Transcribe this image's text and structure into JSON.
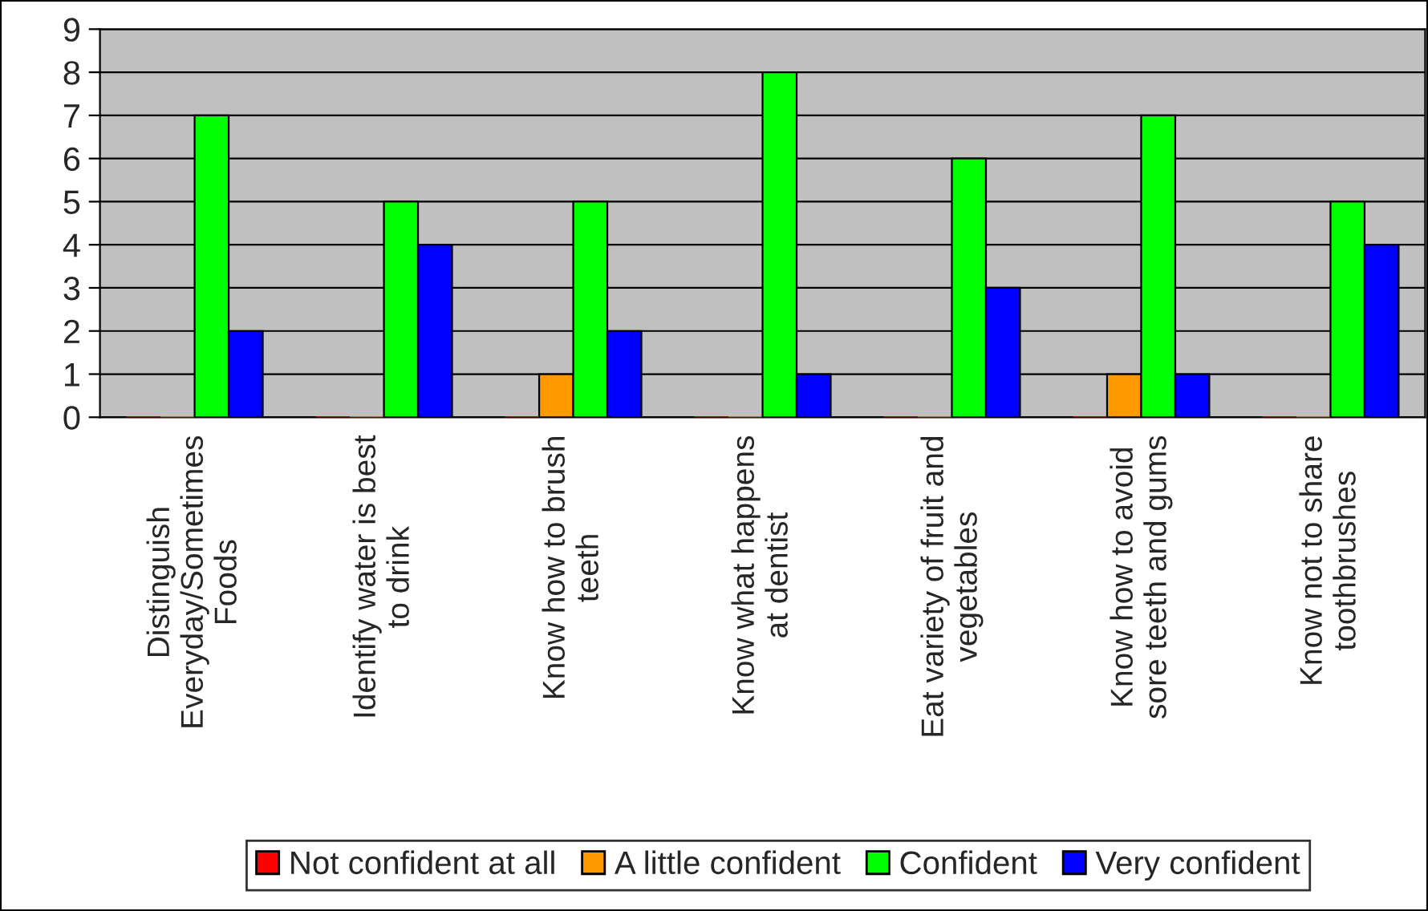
{
  "chart_data": {
    "type": "bar",
    "categories": [
      "Distinguish\nEveryday/Sometimes\nFoods",
      "Identify water is best\nto drink",
      "Know how to brush\nteeth",
      "Know what happens\nat dentist",
      "Eat variety of fruit and\nvegetables",
      "Know how to avoid\nsore teeth and gums",
      "Know not to share\ntoothbrushes"
    ],
    "series": [
      {
        "name": "Not confident at all",
        "color": "#ff0000",
        "values": [
          0,
          0,
          0,
          0,
          0,
          0,
          0
        ]
      },
      {
        "name": "A little confident",
        "color": "#ff9900",
        "values": [
          0,
          0,
          1,
          0,
          0,
          1,
          0
        ]
      },
      {
        "name": "Confident",
        "color": "#00ff00",
        "values": [
          7,
          5,
          5,
          8,
          6,
          7,
          5
        ]
      },
      {
        "name": "Very confident",
        "color": "#0000ff",
        "values": [
          2,
          4,
          2,
          1,
          3,
          1,
          4
        ]
      }
    ],
    "ylim": [
      0,
      9
    ],
    "yticks": [
      0,
      1,
      2,
      3,
      4,
      5,
      6,
      7,
      8,
      9
    ],
    "grid": "y",
    "legend": "bottom"
  }
}
